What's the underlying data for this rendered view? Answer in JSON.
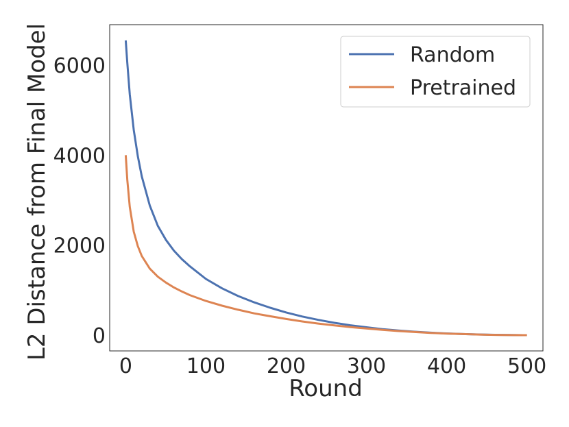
{
  "chart_data": {
    "type": "line",
    "title": "",
    "xlabel": "Round",
    "ylabel": "L2 Distance from Final Model",
    "xlim": [
      -20,
      520
    ],
    "ylim": [
      -350,
      6900
    ],
    "xticks": [
      0,
      100,
      200,
      300,
      400,
      500
    ],
    "yticks": [
      0,
      2000,
      4000,
      6000
    ],
    "grid": false,
    "legend_position": "upper-right",
    "series": [
      {
        "name": "Random",
        "color": "#4c72b0",
        "x": [
          0,
          2,
          5,
          10,
          15,
          20,
          30,
          40,
          50,
          60,
          70,
          80,
          100,
          120,
          140,
          160,
          180,
          200,
          220,
          240,
          260,
          280,
          300,
          320,
          340,
          360,
          380,
          400,
          420,
          440,
          460,
          480,
          500
        ],
        "y": [
          6550,
          6050,
          5350,
          4560,
          3980,
          3530,
          2880,
          2430,
          2120,
          1880,
          1690,
          1530,
          1250,
          1040,
          870,
          730,
          610,
          505,
          415,
          340,
          275,
          220,
          175,
          135,
          102,
          76,
          55,
          38,
          25,
          15,
          8,
          3,
          0
        ]
      },
      {
        "name": "Pretrained",
        "color": "#dd8452",
        "x": [
          0,
          2,
          5,
          10,
          15,
          20,
          30,
          40,
          50,
          60,
          70,
          80,
          100,
          120,
          140,
          160,
          180,
          200,
          220,
          240,
          260,
          280,
          300,
          320,
          340,
          360,
          380,
          400,
          420,
          440,
          460,
          480,
          500
        ],
        "y": [
          4000,
          3450,
          2850,
          2300,
          1980,
          1760,
          1480,
          1300,
          1170,
          1060,
          970,
          890,
          760,
          655,
          565,
          485,
          420,
          360,
          305,
          258,
          217,
          180,
          148,
          118,
          92,
          70,
          51,
          36,
          24,
          14,
          7,
          2,
          0
        ]
      }
    ]
  }
}
